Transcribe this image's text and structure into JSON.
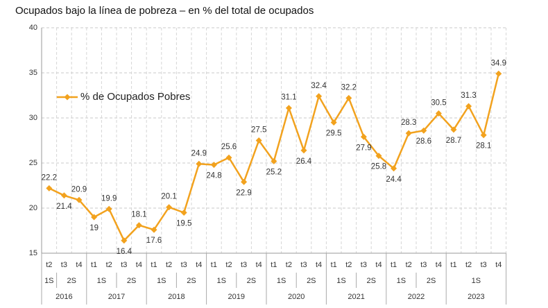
{
  "chart_data": {
    "type": "line",
    "title": "Ocupados bajo la línea de pobreza – en % del total de ocupados",
    "series": [
      {
        "name": "% de Ocupados Pobres",
        "color": "#f2a21e",
        "values": [
          22.2,
          21.4,
          20.9,
          19.0,
          19.9,
          16.4,
          18.1,
          17.6,
          20.1,
          19.5,
          24.9,
          24.8,
          25.6,
          22.9,
          27.5,
          25.2,
          31.1,
          26.4,
          32.4,
          29.5,
          32.2,
          27.9,
          25.8,
          24.4,
          28.3,
          28.6,
          30.5,
          28.7,
          31.3,
          28.1,
          34.9
        ]
      }
    ],
    "years": [
      {
        "label": "2016",
        "semesters": [
          {
            "label": "1S",
            "quarters": [
              "t2"
            ]
          },
          {
            "label": "2S",
            "quarters": [
              "t3",
              "t4"
            ]
          }
        ]
      },
      {
        "label": "2017",
        "semesters": [
          {
            "label": "1S",
            "quarters": [
              "t1",
              "t2"
            ]
          },
          {
            "label": "2S",
            "quarters": [
              "t3",
              "t4"
            ]
          }
        ]
      },
      {
        "label": "2018",
        "semesters": [
          {
            "label": "1S",
            "quarters": [
              "t1",
              "t2"
            ]
          },
          {
            "label": "2S",
            "quarters": [
              "t3",
              "t4"
            ]
          }
        ]
      },
      {
        "label": "2019",
        "semesters": [
          {
            "label": "1S",
            "quarters": [
              "t1",
              "t2"
            ]
          },
          {
            "label": "2S",
            "quarters": [
              "t3",
              "t4"
            ]
          }
        ]
      },
      {
        "label": "2020",
        "semesters": [
          {
            "label": "1S",
            "quarters": [
              "t1",
              "t2"
            ]
          },
          {
            "label": "2S",
            "quarters": [
              "t3",
              "t4"
            ]
          }
        ]
      },
      {
        "label": "2021",
        "semesters": [
          {
            "label": "1S",
            "quarters": [
              "t1",
              "t2"
            ]
          },
          {
            "label": "2S",
            "quarters": [
              "t3",
              "t4"
            ]
          }
        ]
      },
      {
        "label": "2022",
        "semesters": [
          {
            "label": "1S",
            "quarters": [
              "t1",
              "t2"
            ]
          },
          {
            "label": "2S",
            "quarters": [
              "t3",
              "t4"
            ]
          }
        ]
      },
      {
        "label": "2023",
        "semesters": [
          {
            "label": "1S",
            "quarters": [
              "t1",
              "t2",
              "t3",
              "t4"
            ]
          }
        ]
      }
    ],
    "ylim": [
      15,
      40
    ],
    "yticks": [
      15,
      20,
      25,
      30,
      35,
      40
    ],
    "grid": true,
    "legend": "upper left"
  }
}
